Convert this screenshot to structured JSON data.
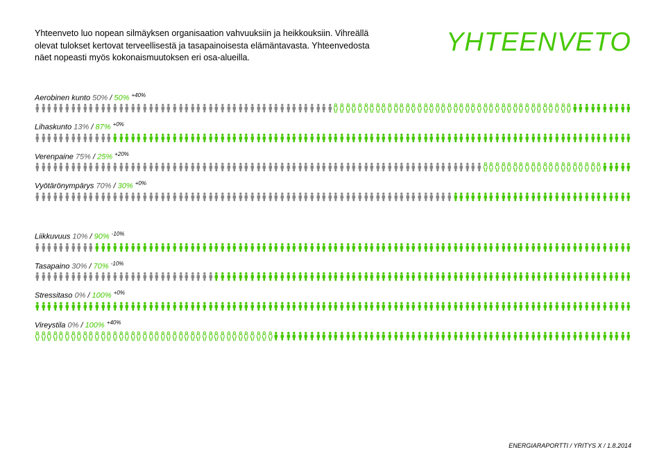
{
  "intro_text": "Yhteenveto luo nopean silmäyksen organisaation vahvuuksiin ja heikkouksiin. Vihreällä olevat tulokset kertovat terveellisestä ja tasapainoisesta elämäntavasta. Yhteenvedosta näet nopeasti myös kokonaismuutoksen eri osa-alueilla.",
  "title": "YHTEENVETO",
  "footer": "ENERGIARAPORTTI / YRITYS X / 1.8.2014",
  "colors": {
    "gray": "#888888",
    "green": "#46c800",
    "outline_green": "#46c800",
    "background": "#ffffff",
    "text": "#000000"
  },
  "people_count": 100,
  "metrics": [
    {
      "name": "Aerobinen kunto",
      "gray_pct": 50,
      "green_pct": 50,
      "delta": "+40%",
      "outline_start": 50,
      "outline_end": 90
    },
    {
      "name": "Lihaskunto",
      "gray_pct": 13,
      "green_pct": 87,
      "delta": "+0%",
      "outline_start": null,
      "outline_end": null
    },
    {
      "name": "Verenpaine",
      "gray_pct": 75,
      "green_pct": 25,
      "delta": "+20%",
      "outline_start": 75,
      "outline_end": 95
    },
    {
      "name": "Vyötärönympärys",
      "gray_pct": 70,
      "green_pct": 30,
      "delta": "+0%",
      "outline_start": null,
      "outline_end": null
    },
    {
      "spacer": true
    },
    {
      "name": "Liikkuvuus",
      "gray_pct": 10,
      "green_pct": 90,
      "delta": "-10%",
      "outline_start": null,
      "outline_end": null
    },
    {
      "name": "Tasapaino",
      "gray_pct": 30,
      "green_pct": 70,
      "delta": "-10%",
      "outline_start": null,
      "outline_end": null
    },
    {
      "name": "Stressitaso",
      "gray_pct": 0,
      "green_pct": 100,
      "delta": "+0%",
      "outline_start": null,
      "outline_end": null
    },
    {
      "name": "Vireystila",
      "gray_pct": 0,
      "green_pct": 100,
      "delta": "+40%",
      "outline_start": 0,
      "outline_end": 40
    }
  ]
}
